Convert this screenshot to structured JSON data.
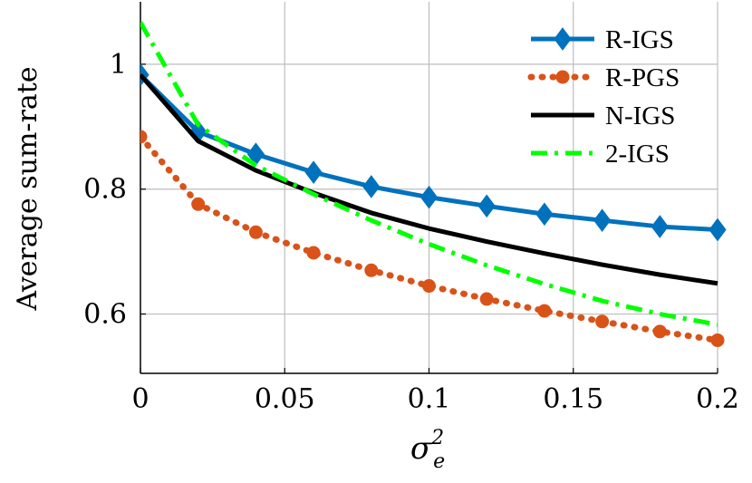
{
  "chart_data": {
    "type": "line",
    "title": "",
    "xlabel": {
      "base": "σ",
      "subscript": "e",
      "superscript": "2"
    },
    "ylabel": "Average sum-rate",
    "xlim": [
      0,
      0.2
    ],
    "ylim": [
      0.505,
      1.1
    ],
    "xticks": [
      0,
      0.05,
      0.1,
      0.15,
      0.2
    ],
    "xtick_labels": [
      "0",
      "0.05",
      "0.1",
      "0.15",
      "0.2"
    ],
    "yticks": [
      0.6,
      0.8,
      1.0
    ],
    "ytick_labels": [
      "0.6",
      "0.8",
      "1"
    ],
    "grid": true,
    "legend_position": "top-right",
    "series": [
      {
        "name": "R-IGS",
        "color": "#0072BD",
        "style": "solid",
        "marker": "diamond",
        "x": [
          0,
          0.02,
          0.04,
          0.06,
          0.08,
          0.1,
          0.12,
          0.14,
          0.16,
          0.18,
          0.2
        ],
        "y": [
          0.983,
          0.892,
          0.856,
          0.827,
          0.804,
          0.787,
          0.773,
          0.76,
          0.75,
          0.74,
          0.735
        ]
      },
      {
        "name": "R-PGS",
        "color": "#D95319",
        "style": "dotted",
        "marker": "circle",
        "x": [
          0,
          0.02,
          0.04,
          0.06,
          0.08,
          0.1,
          0.12,
          0.14,
          0.16,
          0.18,
          0.2
        ],
        "y": [
          0.884,
          0.776,
          0.731,
          0.698,
          0.67,
          0.645,
          0.624,
          0.605,
          0.588,
          0.572,
          0.558
        ]
      },
      {
        "name": "N-IGS",
        "color": "#000000",
        "style": "solid",
        "marker": "none",
        "x": [
          0,
          0.02,
          0.04,
          0.06,
          0.08,
          0.1,
          0.12,
          0.14,
          0.16,
          0.18,
          0.2
        ],
        "y": [
          0.983,
          0.877,
          0.83,
          0.794,
          0.762,
          0.737,
          0.716,
          0.697,
          0.679,
          0.663,
          0.649
        ]
      },
      {
        "name": "2-IGS",
        "color": "#00FF00",
        "style": "dashdot",
        "marker": "none",
        "x": [
          0,
          0.02,
          0.04,
          0.06,
          0.08,
          0.1,
          0.12,
          0.14,
          0.16,
          0.18,
          0.2
        ],
        "y": [
          1.067,
          0.903,
          0.838,
          0.792,
          0.75,
          0.712,
          0.678,
          0.648,
          0.621,
          0.6,
          0.583
        ]
      }
    ]
  }
}
